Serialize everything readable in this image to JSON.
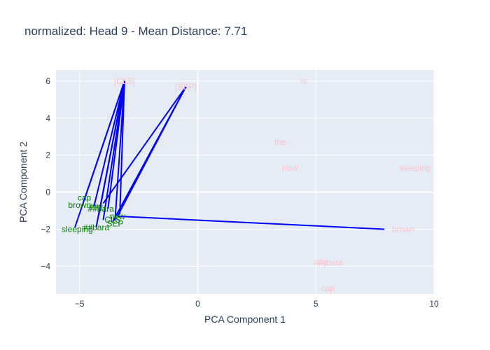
{
  "chart_data": {
    "type": "scatter",
    "title": "normalized: Head 9 - Mean Distance: 7.71",
    "xlabel": "PCA Component 1",
    "ylabel": "PCA Component 2",
    "xlim": [
      -6,
      10
    ],
    "ylim": [
      -5.5,
      6.6
    ],
    "xticks": [
      -5,
      0,
      5,
      10
    ],
    "yticks": [
      -4,
      -2,
      0,
      2,
      4,
      6
    ],
    "grid": true,
    "legend": "none",
    "colors": {
      "plot_bg": "#e5ecf6",
      "grid": "#ffffff",
      "source_label": "#008000",
      "target_label": "#ffc0cb",
      "line": "#0000ff"
    },
    "source_points": [
      {
        "label": "cap",
        "x": -4.8,
        "y": -0.3
      },
      {
        "label": "brown",
        "x": -5.0,
        "y": -0.7
      },
      {
        "label": "##y",
        "x": -4.3,
        "y": -0.8
      },
      {
        "label": "##bara",
        "x": -4.1,
        "y": -0.9
      },
      {
        "label": "now",
        "x": -3.4,
        "y": -1.3
      },
      {
        "label": "CLS",
        "x": -3.6,
        "y": -1.5
      },
      {
        "label": "SEP",
        "x": -3.5,
        "y": -1.7
      },
      {
        "label": "sleeping",
        "x": -5.1,
        "y": -2.0
      },
      {
        "label": "##bara",
        "x": -4.3,
        "y": -1.9
      }
    ],
    "target_points": [
      {
        "label": "[CLS]",
        "x": -3.1,
        "y": 6.0
      },
      {
        "label": "[SEP]",
        "x": -0.5,
        "y": 5.7
      },
      {
        "label": "is",
        "x": 4.5,
        "y": 6.0
      },
      {
        "label": "the",
        "x": 3.5,
        "y": 2.7
      },
      {
        "label": "now",
        "x": 3.9,
        "y": 1.3
      },
      {
        "label": "sleeping",
        "x": 9.2,
        "y": 1.3
      },
      {
        "label": "brown",
        "x": 8.7,
        "y": -2.0
      },
      {
        "label": "##y",
        "x": 5.2,
        "y": -3.8
      },
      {
        "label": "##bara",
        "x": 5.6,
        "y": -3.8
      },
      {
        "label": "cap",
        "x": 5.5,
        "y": -5.2
      }
    ],
    "segments": [
      {
        "from": [
          -5.2,
          -1.9
        ],
        "to": [
          -3.1,
          6.0
        ]
      },
      {
        "from": [
          -4.8,
          -0.4
        ],
        "to": [
          -3.1,
          6.0
        ]
      },
      {
        "from": [
          -4.4,
          -0.8
        ],
        "to": [
          -3.1,
          6.0
        ]
      },
      {
        "from": [
          -4.3,
          -1.9
        ],
        "to": [
          -3.1,
          6.0
        ]
      },
      {
        "from": [
          -4.2,
          -1.3
        ],
        "to": [
          -3.1,
          6.0
        ]
      },
      {
        "from": [
          -4.0,
          -1.5
        ],
        "to": [
          -3.1,
          6.0
        ]
      },
      {
        "from": [
          -3.8,
          -0.9
        ],
        "to": [
          -3.1,
          6.0
        ]
      },
      {
        "from": [
          -3.5,
          -1.5
        ],
        "to": [
          -3.1,
          6.0
        ]
      },
      {
        "from": [
          -3.3,
          -1.2
        ],
        "to": [
          -3.1,
          6.0
        ]
      },
      {
        "from": [
          -3.4,
          -1.3
        ],
        "to": [
          -0.5,
          5.7
        ]
      },
      {
        "from": [
          -3.6,
          -1.6
        ],
        "to": [
          -0.5,
          5.7
        ]
      },
      {
        "from": [
          -4.0,
          -0.6
        ],
        "to": [
          -0.5,
          5.7
        ]
      },
      {
        "from": [
          -3.4,
          -1.3
        ],
        "to": [
          7.9,
          -2.0
        ]
      }
    ]
  }
}
